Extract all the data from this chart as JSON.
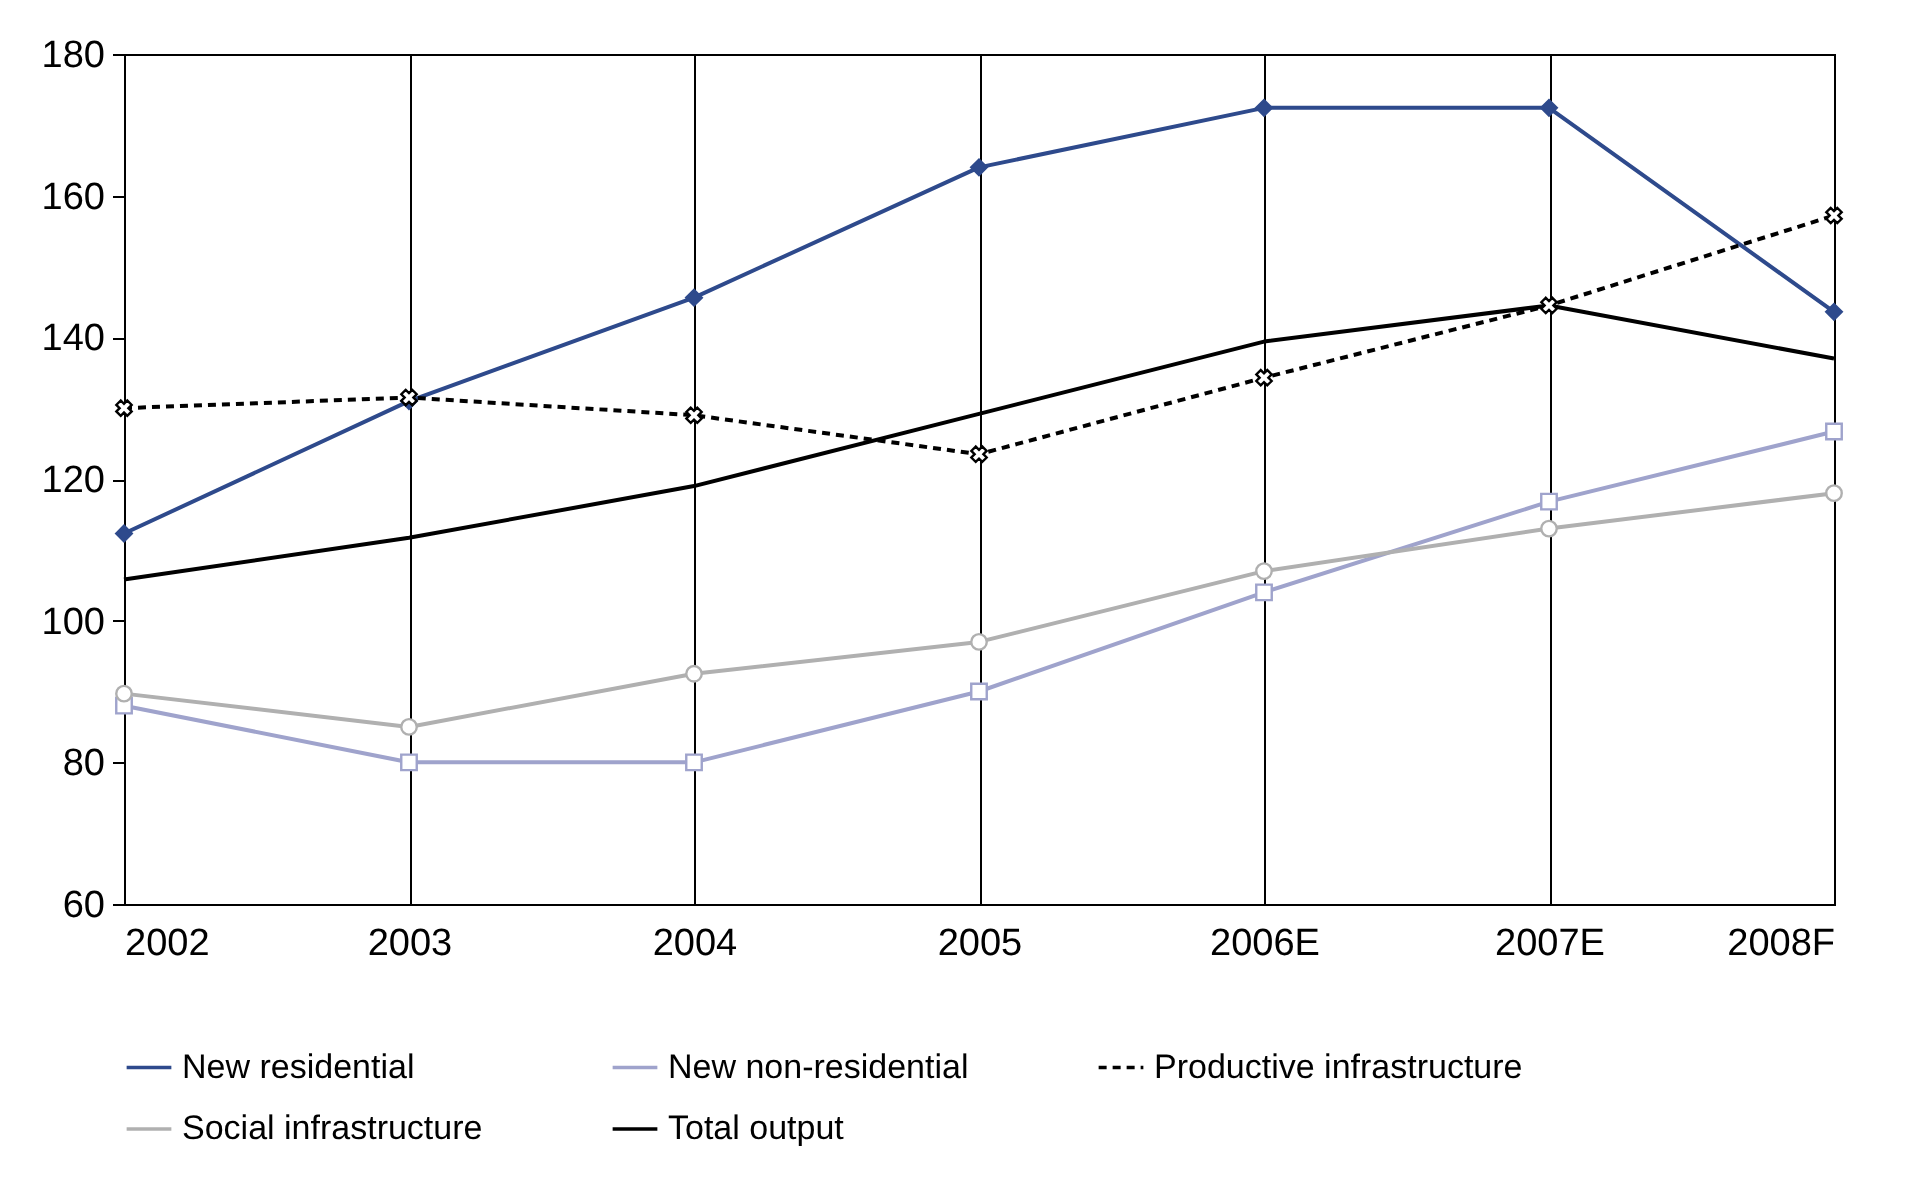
{
  "chart_data": {
    "type": "line",
    "categories": [
      "2002",
      "2003",
      "2004",
      "2005",
      "2006E",
      "2007E",
      "2008F"
    ],
    "series": [
      {
        "name": "New residential",
        "color": "#2e4a8c",
        "marker": "diamond",
        "line_style": "solid",
        "values": [
          112.3,
          131,
          145.6,
          164,
          172.4,
          172.4,
          143.6
        ]
      },
      {
        "name": "New non-residential",
        "color": "#9fa3cc",
        "marker": "square",
        "line_style": "solid",
        "values": [
          88,
          80,
          80,
          90,
          104,
          116.8,
          126.7
        ]
      },
      {
        "name": "Productive infrastructure",
        "color": "#000000",
        "marker": "cross",
        "line_style": "dashed",
        "values": [
          130,
          131.5,
          129,
          123.5,
          134.3,
          144.5,
          157.2
        ]
      },
      {
        "name": "Social infrastructure",
        "color": "#b0b0b0",
        "marker": "circle",
        "line_style": "solid",
        "values": [
          89.7,
          85,
          92.5,
          97,
          107,
          113,
          118
        ]
      },
      {
        "name": "Total output",
        "color": "#000000",
        "marker": "none",
        "line_style": "solid",
        "values": [
          105.8,
          111.7,
          119,
          129.2,
          139.4,
          144.5,
          137
        ]
      }
    ],
    "ylim": [
      60,
      180
    ],
    "yticks": [
      60,
      80,
      100,
      120,
      140,
      160,
      180
    ],
    "grid": "x",
    "legend": "bottom"
  }
}
